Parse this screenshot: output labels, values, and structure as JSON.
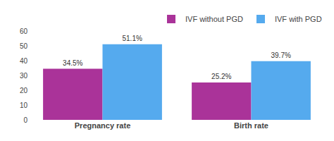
{
  "chart_data": {
    "type": "bar",
    "categories": [
      "Pregnancy rate",
      "Birth rate"
    ],
    "series": [
      {
        "name": "IVF without PGD",
        "color": "#aa3399",
        "values": [
          34.5,
          25.2
        ],
        "value_labels": [
          "34.5%",
          "25.2%"
        ]
      },
      {
        "name": "IVF with PGD",
        "color": "#55aaee",
        "values": [
          51.1,
          39.7
        ],
        "value_labels": [
          "51.1%",
          "39.7%"
        ]
      }
    ],
    "ylim": [
      0,
      60
    ],
    "yticks": [
      0,
      10,
      20,
      30,
      40,
      50,
      60
    ],
    "grid": false,
    "legend": "upper right",
    "data_labels": true
  }
}
